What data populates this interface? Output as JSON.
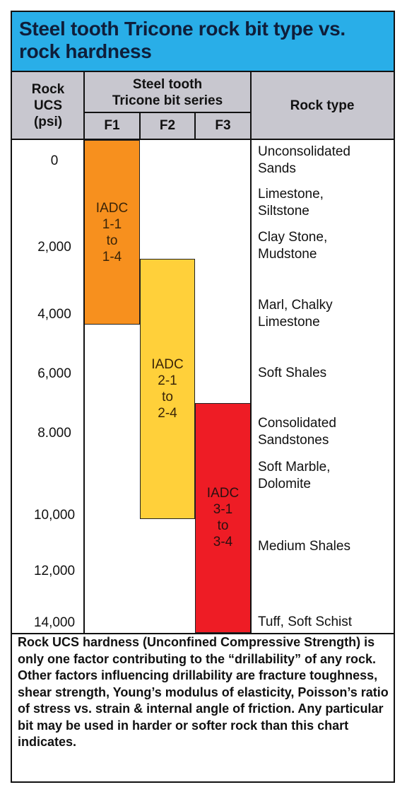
{
  "title": "Steel tooth Tricone rock bit type vs. rock hardness",
  "header": {
    "rock_ucs": [
      "Rock",
      "UCS",
      "(psi)"
    ],
    "bit_series": [
      "Steel tooth",
      "Tricone bit series"
    ],
    "columns": [
      "F1",
      "F2",
      "F3"
    ],
    "rock_type": "Rock type"
  },
  "ucs_values": [
    "0",
    "2,000",
    "4,000",
    "6,000",
    "8.000",
    "10,000",
    "12,000",
    "14,000"
  ],
  "rock_types": [
    [
      "Unconsolidated",
      "Sands"
    ],
    [
      "Limestone,",
      "Siltstone"
    ],
    [
      "Clay Stone,",
      "Mudstone"
    ],
    [
      "Marl, Chalky",
      "Limestone"
    ],
    [
      "Soft Shales"
    ],
    [
      "Consolidated",
      "Sandstones"
    ],
    [
      "Soft Marble,",
      "Dolomite"
    ],
    [
      "Medium Shales"
    ],
    [
      "Tuff, Soft Schist"
    ]
  ],
  "bars": [
    {
      "series": "F1",
      "lines": [
        "IADC",
        "1-1",
        "to",
        "1-4"
      ],
      "color": "#f7901e",
      "ucs_range": [
        0,
        4700
      ]
    },
    {
      "series": "F2",
      "lines": [
        "IADC",
        "2-1",
        "to",
        "2-4"
      ],
      "color": "#ffd03a",
      "ucs_range": [
        2700,
        10500
      ]
    },
    {
      "series": "F3",
      "lines": [
        "IADC",
        "3-1",
        "to",
        "3-4"
      ],
      "color": "#ee1c25",
      "ucs_range": [
        7300,
        14000
      ]
    }
  ],
  "note": "Rock UCS hardness (Unconfined Compressive Strength) is only one factor contributing to the “drillability” of any rock. Other factors influencing drillability are fracture toughness, shear strength, Young’s modulus of elasticity, Poisson’s ratio of stress vs. strain & internal angle of friction. Any particular bit may be used in harder or softer rock than this chart indicates.",
  "colors": {
    "title_bg": "#29aee8",
    "header_bg": "#c8c7cf",
    "f1": "#f7901e",
    "f2": "#ffd03a",
    "f3": "#ee1c25"
  }
}
